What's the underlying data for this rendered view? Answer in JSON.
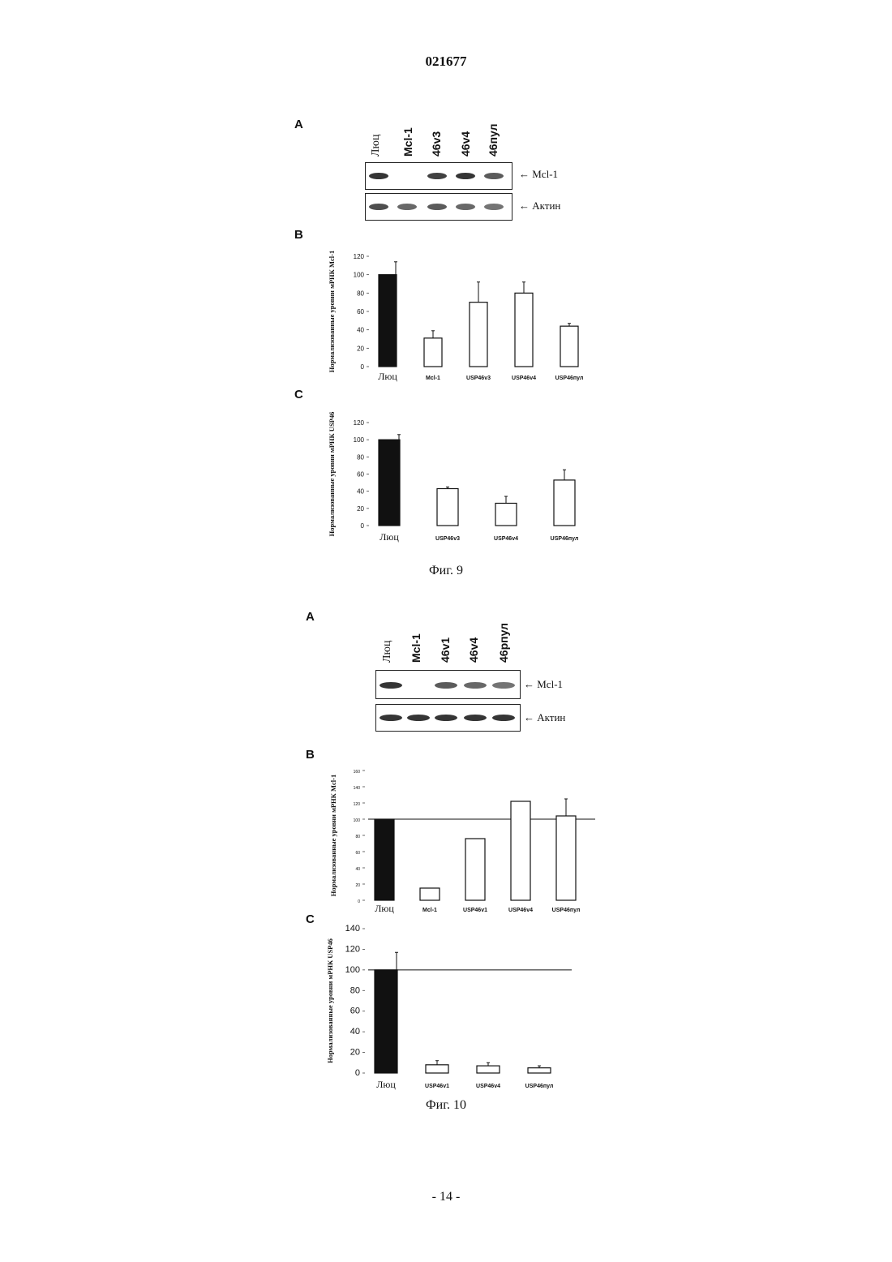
{
  "document": {
    "number": "021677",
    "page_label": "- 14 -"
  },
  "fig9": {
    "caption": "Фиг. 9",
    "panel_a": {
      "letter": "A",
      "lanes": [
        "Люц",
        "Mcl-1",
        "46v3",
        "46v4",
        "46пул"
      ],
      "band_rows": [
        {
          "label": "Mcl-1",
          "intensity": [
            1,
            0,
            0.9,
            1,
            0.7
          ]
        },
        {
          "label": "Актин",
          "intensity": [
            0.8,
            0.6,
            0.7,
            0.6,
            0.5
          ]
        }
      ]
    }
  },
  "fig10": {
    "caption": "Фиг. 10",
    "panel_a": {
      "letter": "A",
      "lanes": [
        "Люц",
        "Mcl-1",
        "46v1",
        "46v4",
        "46pпул"
      ],
      "band_rows": [
        {
          "label": "Mcl-1",
          "intensity": [
            1,
            0,
            0.7,
            0.6,
            0.5
          ]
        },
        {
          "label": "Актин",
          "intensity": [
            1,
            1,
            1,
            1,
            1
          ]
        }
      ]
    }
  },
  "chart_data": [
    {
      "id": "fig9b",
      "panel": "B",
      "type": "bar",
      "ylabel": "Нормализованные уровни мРНК Mcl-1",
      "categories": [
        "Люц",
        "Mcl-1",
        "USP46v3",
        "USP46v4",
        "USP46пул"
      ],
      "values": [
        100,
        31,
        70,
        80,
        44
      ],
      "errors": [
        14,
        8,
        22,
        12,
        3
      ],
      "fills": [
        "#111111",
        "#ffffff",
        "#ffffff",
        "#ffffff",
        "#ffffff"
      ],
      "ylim": [
        0,
        120
      ],
      "yticks": [
        0,
        20,
        40,
        60,
        80,
        100,
        120
      ],
      "reference_line": null
    },
    {
      "id": "fig9c",
      "panel": "C",
      "type": "bar",
      "ylabel": "Нормализованные уровни мРНК USP46",
      "categories": [
        "Люц",
        "USP46v3",
        "USP46v4",
        "USP46пул"
      ],
      "values": [
        100,
        43,
        26,
        53
      ],
      "errors": [
        6,
        2,
        8,
        12
      ],
      "fills": [
        "#111111",
        "#ffffff",
        "#ffffff",
        "#ffffff"
      ],
      "ylim": [
        0,
        120
      ],
      "yticks": [
        0,
        20,
        40,
        60,
        80,
        100,
        120
      ],
      "reference_line": null
    },
    {
      "id": "fig10b",
      "panel": "B",
      "type": "bar",
      "ylabel": "Нормализованные уровни мРНК Mcl-1",
      "categories": [
        "Люц",
        "Mcl-1",
        "USP46v1",
        "USP46v4",
        "USP46пул"
      ],
      "values": [
        100,
        15,
        76,
        122,
        104
      ],
      "errors": [
        0,
        0,
        0,
        0,
        21
      ],
      "fills": [
        "#111111",
        "#ffffff",
        "#ffffff",
        "#ffffff",
        "#ffffff"
      ],
      "ylim": [
        0,
        160
      ],
      "yticks": [
        0,
        20,
        40,
        60,
        80,
        100,
        120,
        140,
        160
      ],
      "reference_line": 100
    },
    {
      "id": "fig10c",
      "panel": "C",
      "type": "bar",
      "ylabel": "Нормализованные уровни мРНК USP46",
      "categories": [
        "Люц",
        "USP46v1",
        "USP46v4",
        "USP46пул"
      ],
      "values": [
        100,
        8,
        7,
        5
      ],
      "errors": [
        17,
        4,
        3,
        2
      ],
      "fills": [
        "#111111",
        "#ffffff",
        "#ffffff",
        "#ffffff"
      ],
      "ylim": [
        0,
        140
      ],
      "yticks": [
        0,
        20,
        40,
        60,
        80,
        100,
        120,
        140
      ],
      "reference_line": 100
    }
  ]
}
